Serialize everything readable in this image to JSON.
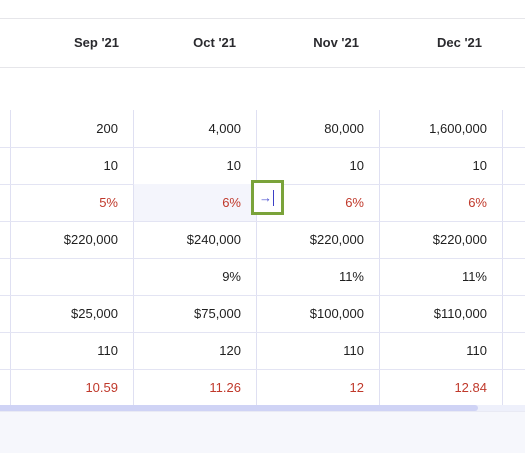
{
  "columns": [
    "Sep '21",
    "Oct '21",
    "Nov '21",
    "Dec '21"
  ],
  "rows": [
    {
      "cells": [
        "200",
        "4,000",
        "80,000",
        "1,600,000"
      ],
      "red": false
    },
    {
      "cells": [
        "10",
        "10",
        "10",
        "10"
      ],
      "red": false
    },
    {
      "cells": [
        "5%",
        "6%",
        "6%",
        "6%"
      ],
      "red": true
    },
    {
      "cells": [
        "$220,000",
        "$240,000",
        "$220,000",
        "$220,000"
      ],
      "red": false
    },
    {
      "cells": [
        "",
        "9%",
        "11%",
        "11%"
      ],
      "red": false
    },
    {
      "cells": [
        "$25,000",
        "$75,000",
        "$100,000",
        "$110,000"
      ],
      "red": false
    },
    {
      "cells": [
        "110",
        "120",
        "110",
        "110"
      ],
      "red": false
    },
    {
      "cells": [
        "10.59",
        "11.26",
        "12",
        "12.84"
      ],
      "red": true
    }
  ],
  "active_cell": {
    "icon": "arrow-right-icon",
    "glyph": "→"
  },
  "scrollbar": {
    "position": 0.91
  },
  "colors": {
    "red_text": "#c0392b",
    "focus_border": "#7aa33a"
  }
}
